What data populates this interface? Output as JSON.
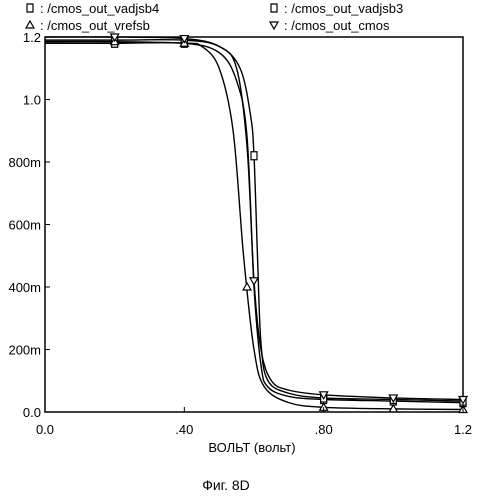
{
  "figure_caption": "Фиг. 8D",
  "chart_data": {
    "type": "line",
    "xlabel": "ВОЛЬТ (вольт)",
    "ylabel": "",
    "xlim": [
      0,
      1.2
    ],
    "ylim": [
      0,
      1.2
    ],
    "x_ticks": [
      0.0,
      0.4,
      0.8,
      1.2
    ],
    "x_tick_labels": [
      "0.0",
      ".40",
      ".80",
      "1.2"
    ],
    "y_ticks": [
      0,
      0.2,
      0.4,
      0.6,
      0.8,
      1.0,
      1.2
    ],
    "y_tick_labels": [
      "0.0",
      "200m",
      "400m",
      "600m",
      "800m",
      "1.0",
      "1.2"
    ],
    "grid": false,
    "legend_position": "top",
    "series": [
      {
        "name": "/cmos_out_vadjsb4",
        "marker": "square",
        "x": [
          0.0,
          0.2,
          0.4,
          0.5,
          0.55,
          0.58,
          0.6,
          0.62,
          0.64,
          0.7,
          0.8,
          1.0,
          1.2
        ],
        "y": [
          1.18,
          1.18,
          1.18,
          1.15,
          1.06,
          0.88,
          0.4,
          0.15,
          0.08,
          0.05,
          0.04,
          0.035,
          0.03
        ]
      },
      {
        "name": "/cmos_out_vadjsb3",
        "marker": "square",
        "x": [
          0.0,
          0.2,
          0.4,
          0.5,
          0.56,
          0.59,
          0.6,
          0.61,
          0.62,
          0.64,
          0.7,
          0.8,
          1.0,
          1.2
        ],
        "y": [
          1.19,
          1.19,
          1.19,
          1.17,
          1.1,
          0.95,
          0.82,
          0.5,
          0.22,
          0.1,
          0.06,
          0.045,
          0.04,
          0.035
        ]
      },
      {
        "name": "/cmos_out_vrefsb",
        "marker": "triangle-up",
        "x": [
          0.0,
          0.2,
          0.4,
          0.45,
          0.5,
          0.54,
          0.57,
          0.6,
          0.63,
          0.7,
          0.8,
          1.0,
          1.2
        ],
        "y": [
          1.185,
          1.185,
          1.18,
          1.17,
          1.1,
          0.9,
          0.5,
          0.2,
          0.08,
          0.03,
          0.015,
          0.01,
          0.008
        ]
      },
      {
        "name": "/cmos_out_cmos",
        "marker": "triangle-down",
        "x": [
          0.0,
          0.2,
          0.4,
          0.5,
          0.55,
          0.58,
          0.6,
          0.62,
          0.65,
          0.7,
          0.8,
          1.0,
          1.2
        ],
        "y": [
          1.2,
          1.2,
          1.195,
          1.17,
          1.1,
          0.85,
          0.42,
          0.2,
          0.1,
          0.07,
          0.055,
          0.045,
          0.04
        ]
      }
    ]
  }
}
